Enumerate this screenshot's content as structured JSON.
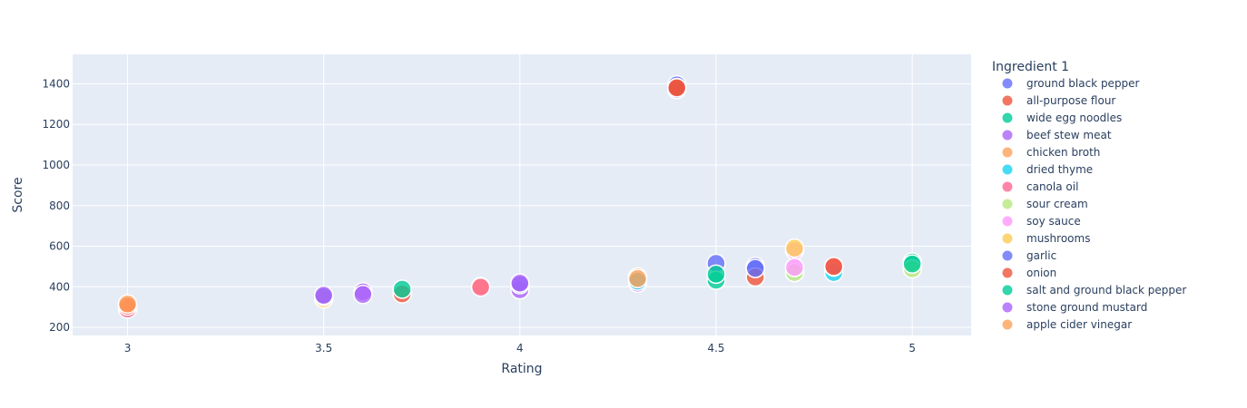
{
  "chart_data": {
    "type": "scatter",
    "title": "",
    "xlabel": "Rating",
    "ylabel": "Score",
    "xlim": [
      2.86,
      5.15
    ],
    "ylim": [
      160,
      1545
    ],
    "x_ticks": [
      3,
      3.5,
      4,
      4.5,
      5
    ],
    "x_tick_labels": [
      "3",
      "3.5",
      "4",
      "4.5",
      "5"
    ],
    "y_ticks": [
      200,
      400,
      600,
      800,
      1000,
      1200,
      1400
    ],
    "y_tick_labels": [
      "200",
      "400",
      "600",
      "800",
      "1000",
      "1200",
      "1400"
    ],
    "grid": true,
    "legend_title": "Ingredient 1",
    "legend_position": "right",
    "background_color": "#e5ecf6",
    "series": [
      {
        "name": "ground black pepper",
        "color": "#636efa",
        "points": [
          {
            "x": 4.4,
            "y": 1395
          },
          {
            "x": 4.4,
            "y": 1372
          },
          {
            "x": 4.5,
            "y": 515
          },
          {
            "x": 4.6,
            "y": 500
          }
        ]
      },
      {
        "name": "all-purpose flour",
        "color": "#ef553b",
        "points": [
          {
            "x": 4.4,
            "y": 1382
          },
          {
            "x": 3.7,
            "y": 365
          },
          {
            "x": 4.6,
            "y": 448
          }
        ]
      },
      {
        "name": "wide egg noodles",
        "color": "#00cc96",
        "points": [
          {
            "x": 3.7,
            "y": 388
          },
          {
            "x": 4.5,
            "y": 432
          },
          {
            "x": 5,
            "y": 522
          }
        ]
      },
      {
        "name": "beef stew meat",
        "color": "#ab63fa",
        "points": [
          {
            "x": 3.6,
            "y": 375
          },
          {
            "x": 4.3,
            "y": 418
          },
          {
            "x": 4,
            "y": 385
          }
        ]
      },
      {
        "name": "chicken broth",
        "color": "#ffa15a",
        "points": [
          {
            "x": 3,
            "y": 310
          },
          {
            "x": 4.3,
            "y": 448
          },
          {
            "x": 3.9,
            "y": 402
          }
        ]
      },
      {
        "name": "dried thyme",
        "color": "#19d3f3",
        "points": [
          {
            "x": 4.3,
            "y": 428
          },
          {
            "x": 4.8,
            "y": 470
          }
        ]
      },
      {
        "name": "canola oil",
        "color": "#ff6692",
        "points": [
          {
            "x": 4.8,
            "y": 497
          },
          {
            "x": 3,
            "y": 290
          },
          {
            "x": 3.9,
            "y": 398
          }
        ]
      },
      {
        "name": "sour cream",
        "color": "#b6e880",
        "points": [
          {
            "x": 4.7,
            "y": 470
          },
          {
            "x": 5,
            "y": 488
          }
        ]
      },
      {
        "name": "soy sauce",
        "color": "#ff97ff",
        "points": [
          {
            "x": 4.7,
            "y": 578
          },
          {
            "x": 4.7,
            "y": 495
          }
        ]
      },
      {
        "name": "mushrooms",
        "color": "#fecb52",
        "points": [
          {
            "x": 3.5,
            "y": 340
          },
          {
            "x": 4.7,
            "y": 590
          }
        ]
      },
      {
        "name": "garlic",
        "color": "#636efa",
        "points": [
          {
            "x": 3.5,
            "y": 352
          },
          {
            "x": 4.6,
            "y": 490
          },
          {
            "x": 4,
            "y": 410
          }
        ]
      },
      {
        "name": "onion",
        "color": "#ef553b",
        "points": [
          {
            "x": 4.4,
            "y": 1380
          },
          {
            "x": 3,
            "y": 305
          },
          {
            "x": 4.8,
            "y": 500
          }
        ]
      },
      {
        "name": "salt and ground black pepper",
        "color": "#00cc96",
        "points": [
          {
            "x": 4.5,
            "y": 462
          },
          {
            "x": 5,
            "y": 512
          }
        ]
      },
      {
        "name": "stone ground mustard",
        "color": "#ab63fa",
        "points": [
          {
            "x": 3.6,
            "y": 362
          },
          {
            "x": 4,
            "y": 418
          },
          {
            "x": 3.5,
            "y": 358
          }
        ]
      },
      {
        "name": "apple cider vinegar",
        "color": "#ffa15a",
        "points": [
          {
            "x": 3,
            "y": 315
          },
          {
            "x": 4.3,
            "y": 440
          }
        ]
      }
    ]
  }
}
